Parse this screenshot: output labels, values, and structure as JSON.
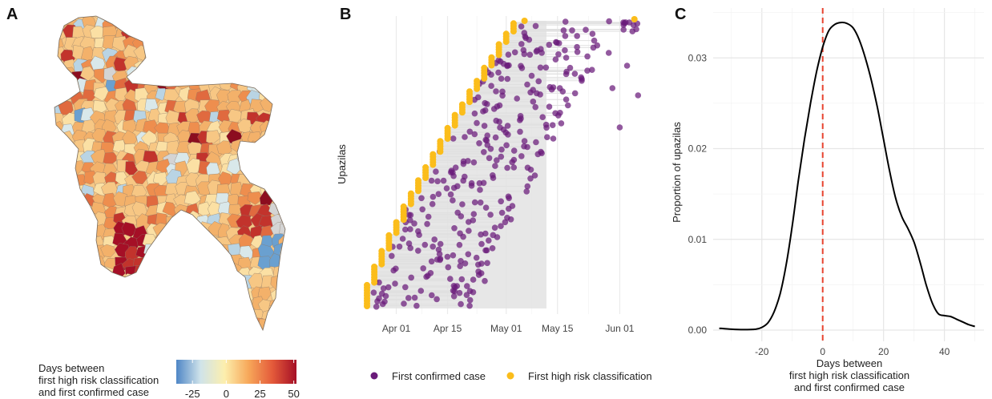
{
  "panels": {
    "a": {
      "letter": "A"
    },
    "b": {
      "letter": "B"
    },
    "c": {
      "letter": "C"
    }
  },
  "chart_data": [
    {
      "panel": "A",
      "type": "heatmap",
      "legend": {
        "title_lines": [
          "Days between",
          "first high risk classification",
          "and first confirmed case"
        ],
        "ticks": [
          "-25",
          "0",
          "25",
          "50"
        ],
        "tick_values": [
          -25,
          0,
          25,
          50
        ],
        "range": [
          -37,
          52
        ],
        "colors": [
          "#4f86c6",
          "#cfe3ea",
          "#fcefae",
          "#f7a85a",
          "#e45a3a",
          "#a50f26"
        ]
      },
      "map_colors": [
        "#f3b16a",
        "#f7c784",
        "#fbe0a4",
        "#d9e8ea",
        "#b9d4e4",
        "#ee8e4e",
        "#e06a3f",
        "#c2332c",
        "#8c0d1f",
        "#6aa0d0",
        "#d4d4d4"
      ]
    },
    {
      "panel": "B",
      "type": "scatter",
      "ylabel": "Upazilas",
      "xlabel": "",
      "x_ticks": [
        "Apr 01",
        "Apr 15",
        "May 01",
        "May 15",
        "Jun 01"
      ],
      "x_tick_values": [
        "2020-04-01",
        "2020-04-15",
        "2020-05-01",
        "2020-05-15",
        "2020-06-01"
      ],
      "xlim": [
        "2020-03-24",
        "2020-06-09"
      ],
      "grid": true,
      "legend_position": "bottom",
      "series": [
        {
          "name": "First confirmed case",
          "color": "#6a1b7a"
        },
        {
          "name": "First high risk classification",
          "color": "#fbbd1b"
        }
      ],
      "high_risk_dates": [
        "2020-03-24",
        "2020-03-26",
        "2020-03-28",
        "2020-03-30",
        "2020-04-01",
        "2020-04-03",
        "2020-04-05",
        "2020-04-07",
        "2020-04-09",
        "2020-04-11",
        "2020-04-13",
        "2020-04-15",
        "2020-04-17",
        "2020-04-19",
        "2020-04-21",
        "2020-04-23",
        "2020-04-25",
        "2020-04-27",
        "2020-04-29",
        "2020-05-01",
        "2020-05-03",
        "2020-05-06",
        "2020-06-05"
      ],
      "notable_confirmed_dates": [
        "2020-03-31",
        "2020-06-06",
        "2020-06-03",
        "2020-06-02",
        "2020-06-01",
        "2020-05-30",
        "2020-05-29",
        "2020-05-24"
      ]
    },
    {
      "panel": "C",
      "type": "line",
      "title": "",
      "xlabel_lines": [
        "Days between",
        "first high risk classification",
        "and first confirmed case"
      ],
      "ylabel": "Proportion of upazilas",
      "x_ticks": [
        "-20",
        "0",
        "20",
        "40"
      ],
      "x_tick_values": [
        -20,
        0,
        20,
        40
      ],
      "y_ticks": [
        "0.00",
        "0.01",
        "0.02",
        "0.03"
      ],
      "y_tick_values": [
        0,
        0.01,
        0.02,
        0.03
      ],
      "xlim": [
        -36,
        53
      ],
      "ylim": [
        0,
        0.0355
      ],
      "grid": true,
      "reference_line": {
        "x": 0,
        "color": "#e8432f",
        "style": "dashed"
      },
      "x": [
        -34,
        -30,
        -26,
        -22,
        -20,
        -18,
        -16,
        -14,
        -12,
        -10,
        -8,
        -6,
        -4,
        -2,
        0,
        2,
        4,
        6,
        8,
        10,
        12,
        14,
        16,
        18,
        20,
        22,
        24,
        26,
        28,
        30,
        32,
        34,
        36,
        38,
        40,
        42,
        44,
        46,
        48,
        50
      ],
      "y": [
        0.0002,
        0.0001,
        5e-05,
        0.0001,
        0.0003,
        0.0008,
        0.002,
        0.004,
        0.0072,
        0.0115,
        0.0165,
        0.021,
        0.025,
        0.0285,
        0.0312,
        0.033,
        0.0337,
        0.0339,
        0.0338,
        0.0333,
        0.032,
        0.03,
        0.0275,
        0.0245,
        0.021,
        0.0175,
        0.0145,
        0.0125,
        0.0112,
        0.0097,
        0.0075,
        0.005,
        0.003,
        0.0018,
        0.0016,
        0.0015,
        0.0012,
        0.0009,
        0.0006,
        0.0004
      ]
    }
  ]
}
